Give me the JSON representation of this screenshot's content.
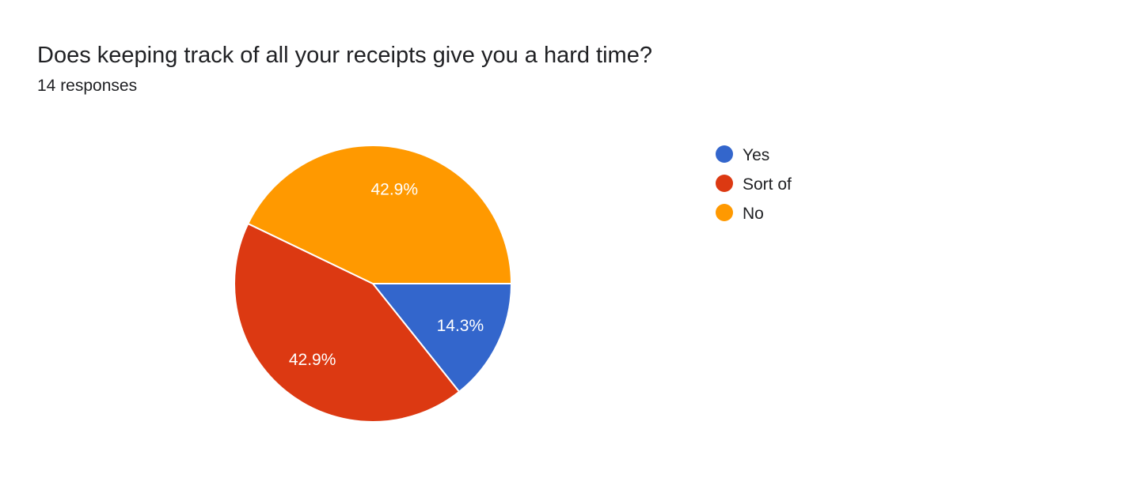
{
  "header": {
    "question": "Does keeping track of all your receipts give you a hard time?",
    "responses": "14 responses"
  },
  "chart_data": {
    "type": "pie",
    "title": "Does keeping track of all your receipts give you a hard time?",
    "subtitle": "14 responses",
    "legend_position": "right",
    "slices": [
      {
        "name": "Yes",
        "value": 14.3,
        "label": "14.3%",
        "color": "#3366cc"
      },
      {
        "name": "Sort of",
        "value": 42.9,
        "label": "42.9%",
        "color": "#dc3912"
      },
      {
        "name": "No",
        "value": 42.9,
        "label": "42.9%",
        "color": "#ff9900"
      }
    ]
  }
}
